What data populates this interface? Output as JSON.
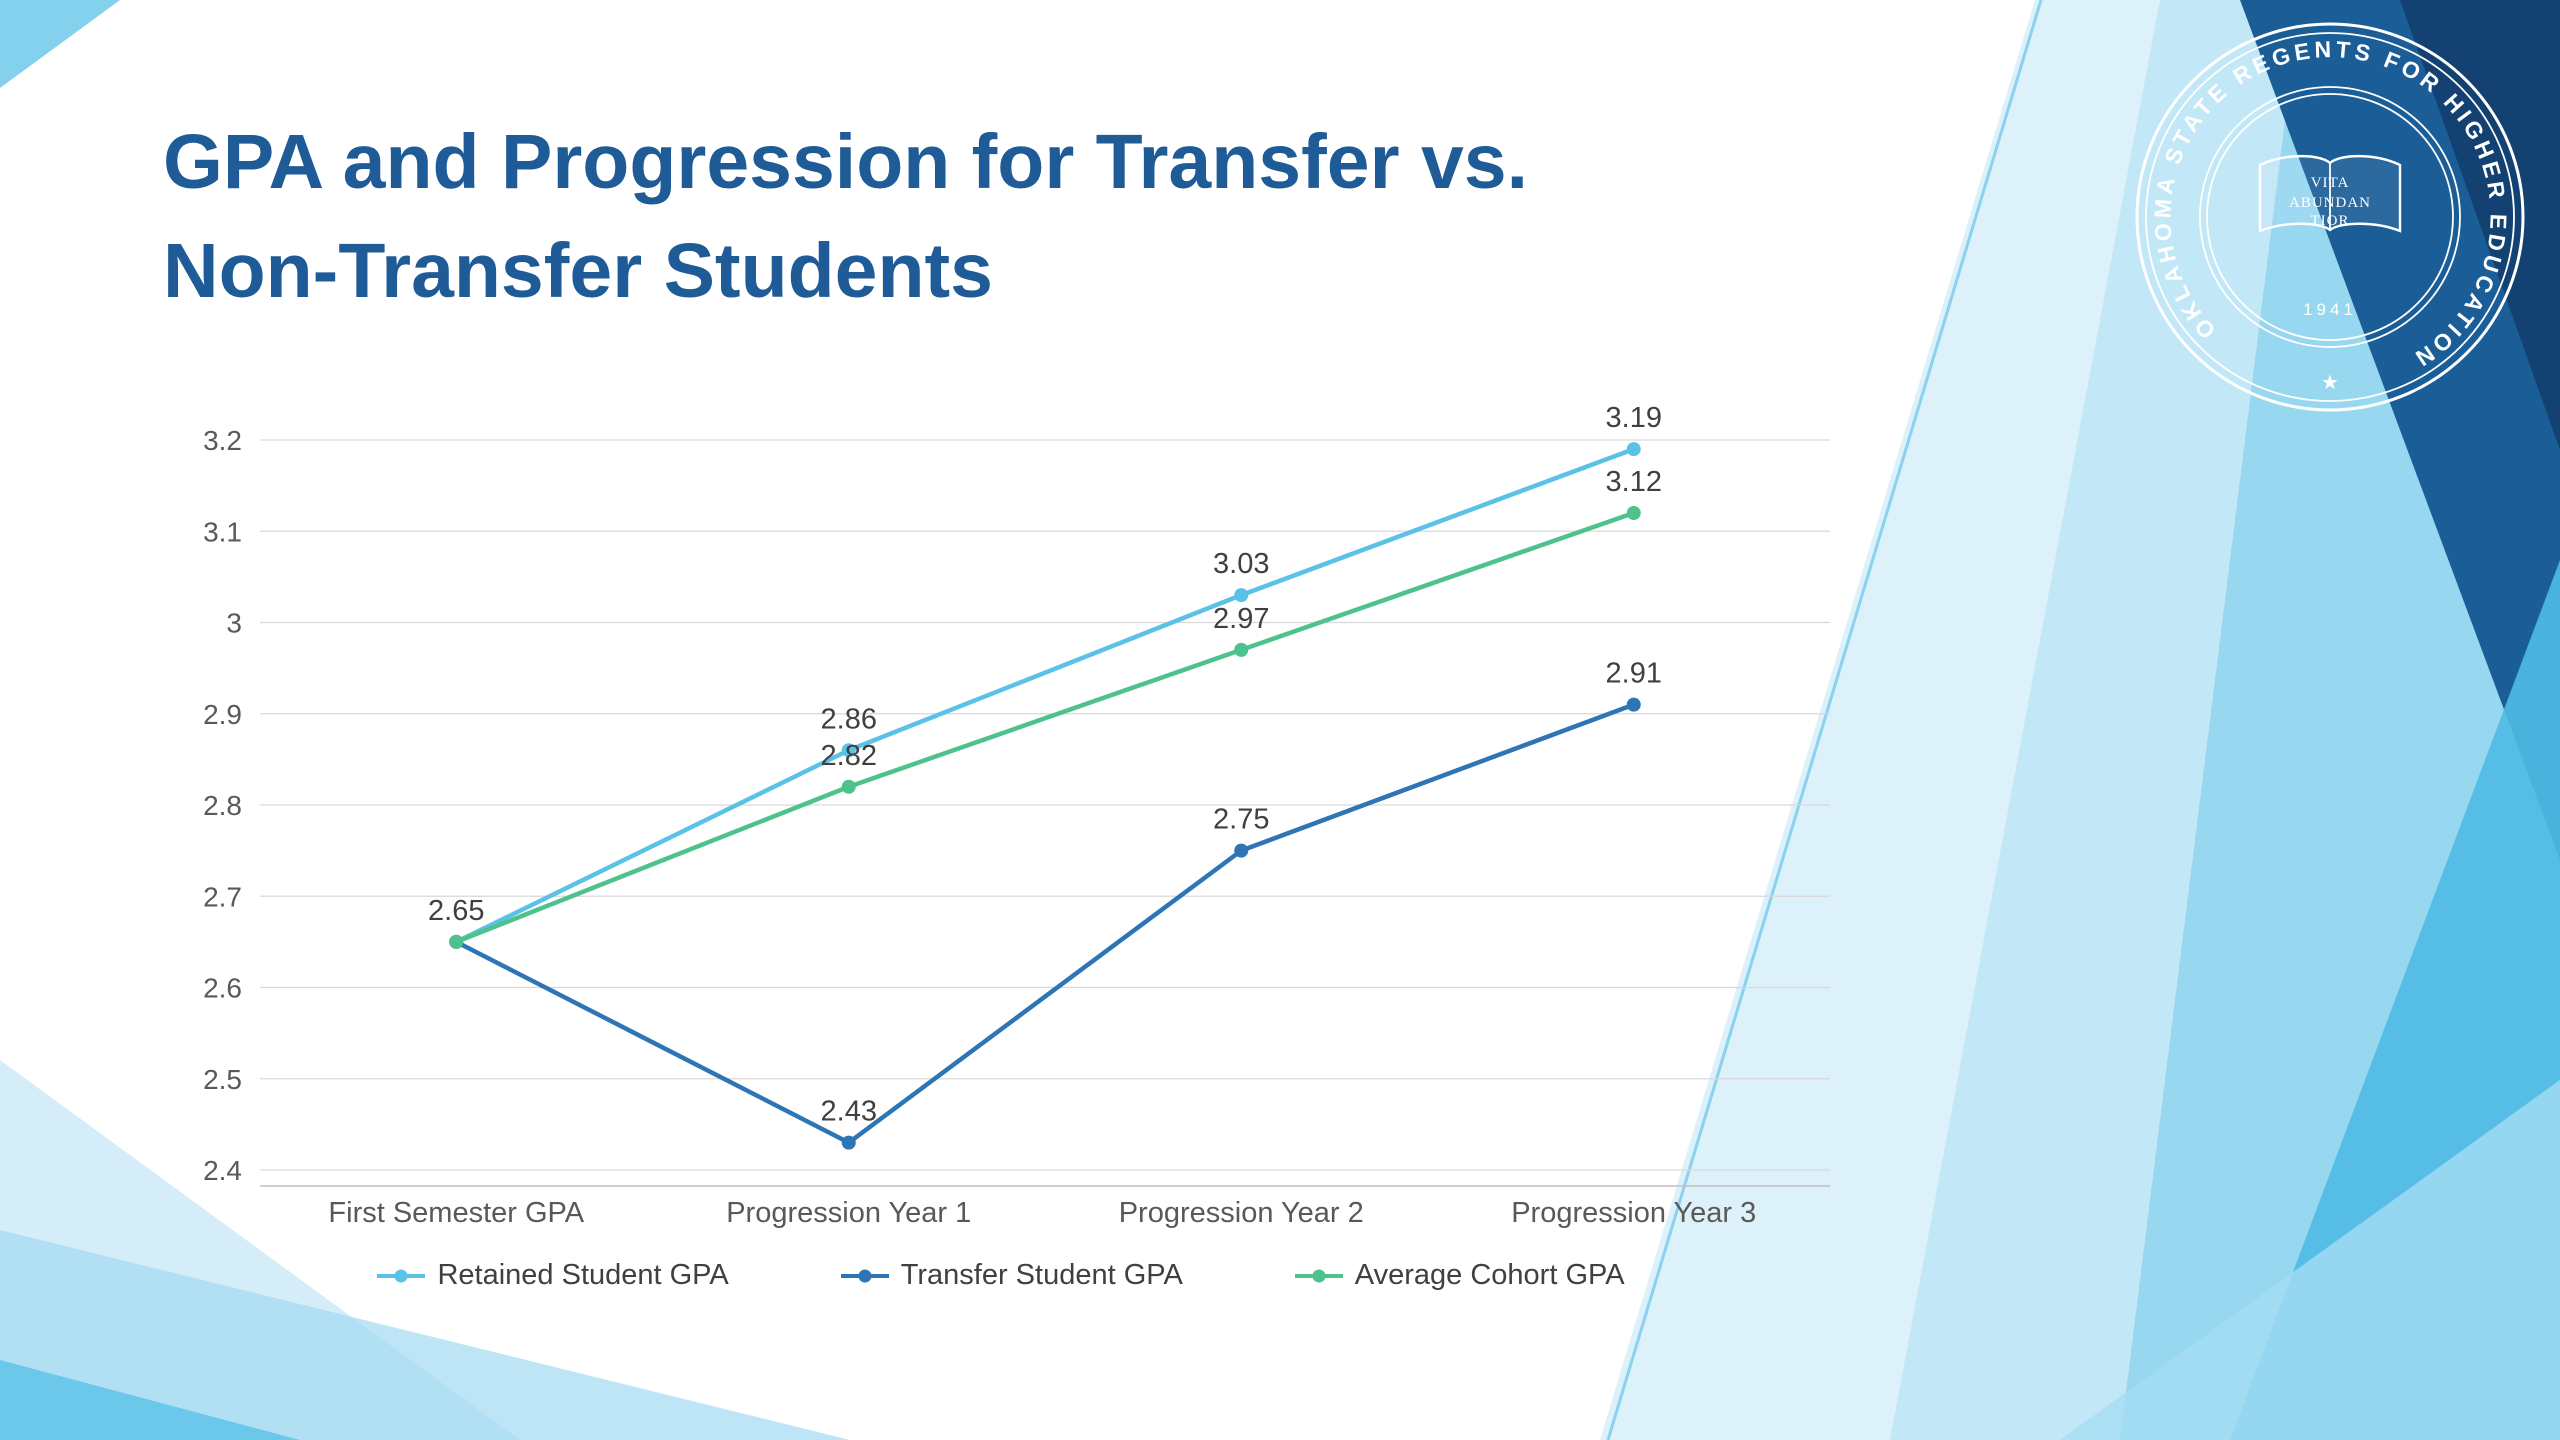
{
  "slide": {
    "title": "GPA and Progression for Transfer vs. Non-Transfer Students",
    "background": "#FFFFFF"
  },
  "colors": {
    "title_text": "#1E5B97",
    "retained_line": "#5BC2E7",
    "transfer_line": "#2E75B6",
    "cohort_line": "#4DC28B",
    "gridline": "#D9D9D9",
    "axis_line": "#BFBFBF",
    "axis_text": "#595959",
    "label_text": "#404040",
    "seal_stroke": "#FFFFFF",
    "decor_pale": "#D8EFFA",
    "decor_light": "#A5DDF3",
    "decor_medium": "#8FD4EF",
    "decor_bright": "#4FBBE4",
    "decor_navy": "#1B5E97",
    "decor_deep_navy": "#123F6E"
  },
  "seal": {
    "ring_text": "OKLAHOMA STATE REGENTS FOR HIGHER EDUCATION",
    "motto": [
      "VITA",
      "ABUNDAN",
      "TIOR"
    ],
    "year": "1941",
    "star": "★"
  },
  "chart_data": {
    "type": "line",
    "title": "GPA and Progression for Transfer vs. Non-Transfer Students",
    "categories": [
      "First Semester GPA",
      "Progression Year 1",
      "Progression Year 2",
      "Progression Year 3"
    ],
    "series": [
      {
        "name": "Retained Student GPA",
        "color": "#5BC2E7",
        "values": [
          2.65,
          2.86,
          3.03,
          3.19
        ]
      },
      {
        "name": "Transfer Student GPA",
        "color": "#2E75B6",
        "values": [
          2.65,
          2.43,
          2.75,
          2.91
        ]
      },
      {
        "name": "Average Cohort GPA",
        "color": "#4DC28B",
        "values": [
          2.65,
          2.82,
          2.97,
          3.12
        ]
      }
    ],
    "ylim": [
      2.4,
      3.2
    ],
    "ytick_step": 0.1,
    "xlabel": "",
    "ylabel": "",
    "grid": true,
    "legend_position": "bottom",
    "data_labels": true
  }
}
